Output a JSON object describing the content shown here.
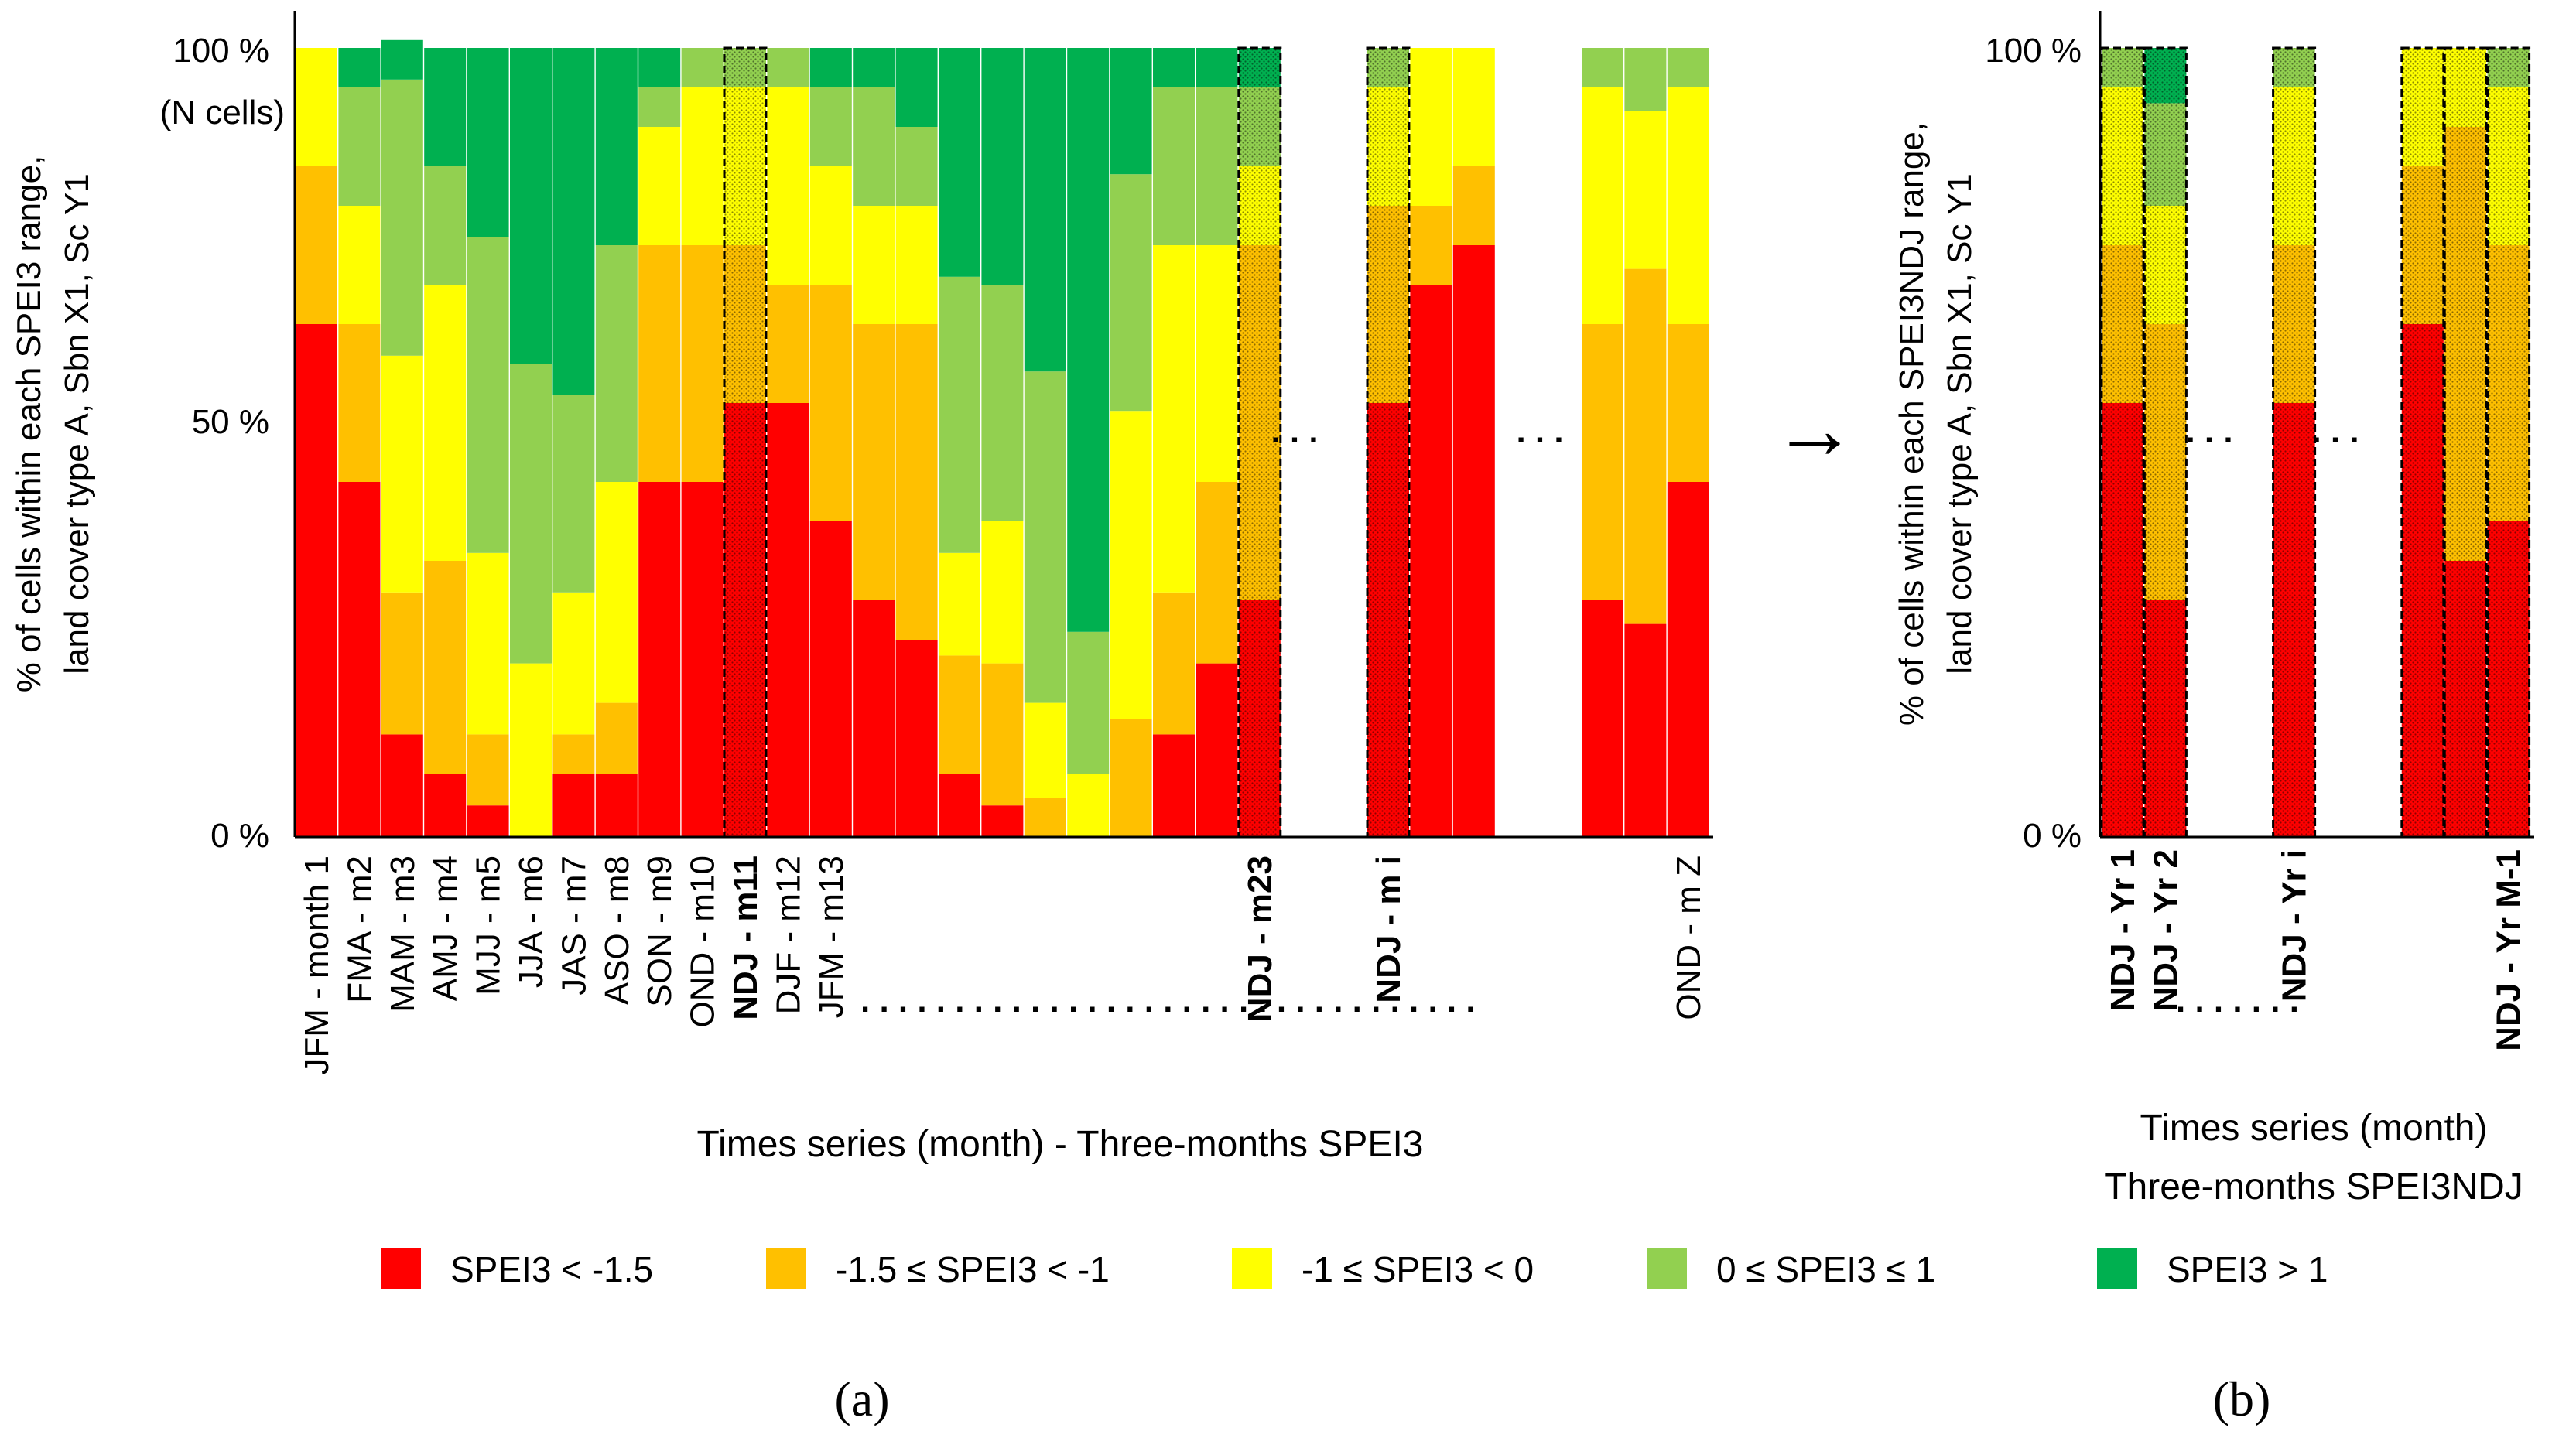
{
  "colors": {
    "red": "#ff0000",
    "orange": "#ffc000",
    "yellow": "#ffff00",
    "lightgreen": "#92d050",
    "green": "#00b050"
  },
  "legend": [
    {
      "label": "SPEI3 < -1.5",
      "color": "#ff0000"
    },
    {
      "label": "-1.5 ≤ SPEI3 < -1",
      "color": "#ffc000"
    },
    {
      "label": "-1 ≤ SPEI3 < 0",
      "color": "#ffff00"
    },
    {
      "label": "0 ≤ SPEI3 ≤ 1",
      "color": "#92d050"
    },
    {
      "label": "SPEI3 > 1",
      "color": "#00b050"
    }
  ],
  "arrow": "→",
  "chart_data": [
    {
      "type": "bar",
      "stacked": true,
      "panel_label": "(a)",
      "ylabel_line1": "% of cells within each SPEI3 range,",
      "ylabel_line2": "land cover type A, Sbn X1, Sc Y1",
      "xlabel": "Times series (month) - Three-months SPEI3",
      "y_ticks": [
        "0 %",
        "50 %",
        "100 %"
      ],
      "y_tick_values": [
        0,
        50,
        100
      ],
      "y_top_sub": "(N cells)",
      "ylim": [
        0,
        100
      ],
      "ellipsis": ". . . . . . . . . . . . . . . . . . . . . . . . . . . . . . . . .",
      "series_order": [
        "SPEI3 < -1.5",
        "-1.5 ≤ SPEI3 < -1",
        "-1 ≤ SPEI3 < 0",
        "0 ≤ SPEI3 ≤ 1",
        "SPEI3 > 1"
      ],
      "slots": [
        0,
        1,
        2,
        3,
        4,
        5,
        6,
        7,
        8,
        9,
        10,
        11,
        12,
        13,
        14,
        15,
        16,
        17,
        18,
        19,
        20,
        21,
        22,
        25,
        26,
        27,
        30,
        31,
        32
      ],
      "categories": [
        "JFM - month 1",
        "FMA - m2",
        "MAM - m3",
        "AMJ - m4",
        "MJJ - m5",
        "JJA - m6",
        "JAS - m7",
        "ASO - m8",
        "SON - m9",
        "OND - m10",
        "NDJ - m11",
        "DJF - m12",
        "JFM - m13",
        "",
        "",
        "",
        "",
        "",
        "",
        "",
        "",
        "",
        "NDJ - m23",
        "NDJ - m i",
        "",
        "",
        "",
        "",
        "OND - m Z"
      ],
      "highlight": [
        false,
        false,
        false,
        false,
        false,
        false,
        false,
        false,
        false,
        false,
        true,
        false,
        false,
        false,
        false,
        false,
        false,
        false,
        false,
        false,
        false,
        false,
        true,
        true,
        false,
        false,
        false,
        false,
        false
      ],
      "values": [
        [
          65,
          20,
          15,
          0,
          0
        ],
        [
          45,
          20,
          15,
          15,
          5
        ],
        [
          13,
          18,
          30,
          35,
          5
        ],
        [
          8,
          27,
          35,
          15,
          15
        ],
        [
          4,
          9,
          23,
          40,
          24
        ],
        [
          0,
          0,
          22,
          38,
          40
        ],
        [
          8,
          5,
          18,
          25,
          44
        ],
        [
          8,
          9,
          28,
          30,
          25
        ],
        [
          45,
          30,
          15,
          5,
          5
        ],
        [
          45,
          30,
          20,
          5,
          0
        ],
        [
          55,
          20,
          20,
          5,
          0
        ],
        [
          55,
          15,
          25,
          5,
          0
        ],
        [
          40,
          30,
          15,
          10,
          5
        ],
        [
          30,
          35,
          15,
          15,
          5
        ],
        [
          25,
          40,
          15,
          10,
          10
        ],
        [
          8,
          15,
          13,
          35,
          29
        ],
        [
          4,
          18,
          18,
          30,
          30
        ],
        [
          0,
          5,
          12,
          42,
          41
        ],
        [
          0,
          0,
          8,
          18,
          74
        ],
        [
          0,
          15,
          39,
          30,
          16
        ],
        [
          13,
          18,
          44,
          20,
          5
        ],
        [
          22,
          23,
          30,
          20,
          5
        ],
        [
          30,
          45,
          10,
          10,
          5
        ],
        [
          55,
          25,
          15,
          5,
          0
        ],
        [
          70,
          10,
          20,
          0,
          0
        ],
        [
          75,
          10,
          15,
          0,
          0
        ],
        [
          30,
          35,
          30,
          5,
          0
        ],
        [
          27,
          45,
          20,
          8,
          0
        ],
        [
          45,
          20,
          30,
          5,
          0
        ]
      ]
    },
    {
      "type": "bar",
      "stacked": true,
      "panel_label": "(b)",
      "ylabel_line1": "% of cells within each SPEI3NDJ range,",
      "ylabel_line2": "land cover type A, Sbn X1, Sc Y1",
      "xlabel_line1": "Times series (month)",
      "xlabel_line2": "Three-months SPEI3NDJ",
      "y_ticks": [
        "0 %",
        "100 %"
      ],
      "y_tick_values": [
        0,
        100
      ],
      "ylim": [
        0,
        100
      ],
      "ellipsis": ". . . . . . .",
      "series_order": [
        "SPEI3 < -1.5",
        "-1.5 ≤ SPEI3 < -1",
        "-1 ≤ SPEI3 < 0",
        "0 ≤ SPEI3 ≤ 1",
        "SPEI3 > 1"
      ],
      "slots": [
        0,
        1,
        4,
        7,
        8,
        9
      ],
      "categories": [
        "NDJ - Yr 1",
        "NDJ - Yr 2",
        "NDJ - Yr i",
        "",
        "",
        "NDJ - Yr M-1"
      ],
      "values": [
        [
          55,
          20,
          20,
          5,
          0
        ],
        [
          30,
          35,
          15,
          13,
          7
        ],
        [
          55,
          20,
          20,
          5,
          0
        ],
        [
          65,
          20,
          15,
          0,
          0
        ],
        [
          35,
          55,
          10,
          0,
          0
        ],
        [
          40,
          35,
          20,
          5,
          0
        ]
      ]
    }
  ]
}
